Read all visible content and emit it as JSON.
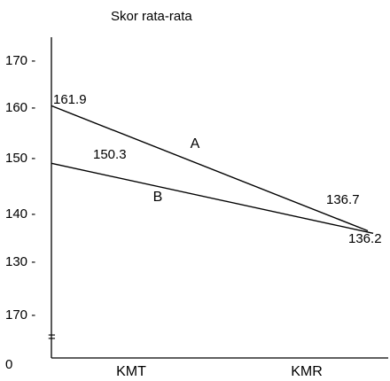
{
  "chart_data": {
    "type": "line",
    "title": "Skor rata-rata",
    "xlabel": "",
    "ylabel": "",
    "categories": [
      "KMT",
      "KMR"
    ],
    "y_tick_labels": [
      "170 -",
      "160 -",
      "150 -",
      "140 -",
      "130 -",
      "170 -",
      "0"
    ],
    "break_mark": "=",
    "series": [
      {
        "name": "A",
        "values": [
          161.9,
          136.7
        ],
        "value_labels": [
          "161.9",
          "136.7"
        ]
      },
      {
        "name": "B",
        "values": [
          150.3,
          136.2
        ],
        "value_labels": [
          "150.3",
          "136.2"
        ]
      }
    ],
    "grid": false,
    "legend": "none"
  }
}
